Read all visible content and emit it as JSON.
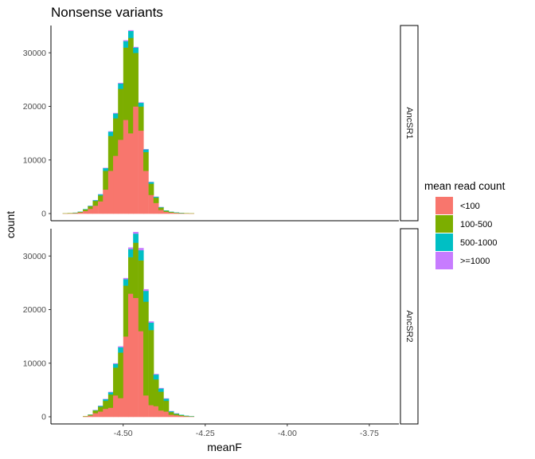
{
  "chart_data": {
    "type": "bar",
    "subtype": "stacked-histogram-faceted",
    "title": "Nonsense variants",
    "xlabel": "meanF",
    "ylabel": "count",
    "xlim": [
      -4.72,
      -3.66
    ],
    "ylim": [
      0,
      34500
    ],
    "x_ticks": [
      -4.5,
      -4.25,
      -4.0,
      -3.75
    ],
    "x_tick_labels": [
      "-4.50",
      "-4.25",
      "-4.00",
      "-3.75"
    ],
    "y_ticks": [
      0,
      10000,
      20000,
      30000
    ],
    "y_tick_labels": [
      "0",
      "10000",
      "20000",
      "30000"
    ],
    "bin_width": 0.0154,
    "grid": false,
    "legend": {
      "title": "mean read count",
      "position": "right",
      "entries": [
        {
          "label": "<100",
          "color": "#F8766D"
        },
        {
          "label": "100-500",
          "color": "#7CAE00"
        },
        {
          "label": "500-1000",
          "color": "#00BFC4"
        },
        {
          "label": ">=1000",
          "color": "#C77CFF"
        }
      ]
    },
    "series_names": [
      "<100",
      "100-500",
      "500-1000",
      ">=1000"
    ],
    "facets": [
      {
        "label": "AncSR1",
        "bins": [
          {
            "x": -4.677,
            "v": [
              30,
              20,
              0,
              0
            ]
          },
          {
            "x": -4.662,
            "v": [
              60,
              40,
              0,
              0
            ]
          },
          {
            "x": -4.646,
            "v": [
              100,
              60,
              5,
              0
            ]
          },
          {
            "x": -4.631,
            "v": [
              220,
              120,
              10,
              0
            ]
          },
          {
            "x": -4.615,
            "v": [
              500,
              300,
              40,
              0
            ]
          },
          {
            "x": -4.6,
            "v": [
              900,
              500,
              60,
              5
            ]
          },
          {
            "x": -4.585,
            "v": [
              1500,
              900,
              120,
              10
            ]
          },
          {
            "x": -4.569,
            "v": [
              2300,
              1100,
              200,
              20
            ]
          },
          {
            "x": -4.554,
            "v": [
              4500,
              3500,
              500,
              40
            ]
          },
          {
            "x": -4.538,
            "v": [
              8000,
              6500,
              800,
              60
            ]
          },
          {
            "x": -4.523,
            "v": [
              10800,
              7000,
              900,
              80
            ]
          },
          {
            "x": -4.508,
            "v": [
              13800,
              9500,
              1000,
              100
            ]
          },
          {
            "x": -4.492,
            "v": [
              17500,
              13500,
              1200,
              150
            ]
          },
          {
            "x": -4.477,
            "v": [
              15000,
              17800,
              1300,
              120
            ]
          },
          {
            "x": -4.462,
            "v": [
              20000,
              10000,
              1000,
              100
            ]
          },
          {
            "x": -4.446,
            "v": [
              15500,
              4500,
              700,
              60
            ]
          },
          {
            "x": -4.431,
            "v": [
              8000,
              3500,
              500,
              40
            ]
          },
          {
            "x": -4.415,
            "v": [
              3500,
              2100,
              300,
              20
            ]
          },
          {
            "x": -4.4,
            "v": [
              2000,
              1000,
              150,
              10
            ]
          },
          {
            "x": -4.385,
            "v": [
              700,
              450,
              70,
              5
            ]
          },
          {
            "x": -4.369,
            "v": [
              350,
              200,
              40,
              0
            ]
          },
          {
            "x": -4.354,
            "v": [
              200,
              120,
              20,
              0
            ]
          },
          {
            "x": -4.338,
            "v": [
              130,
              80,
              10,
              0
            ]
          },
          {
            "x": -4.323,
            "v": [
              80,
              50,
              5,
              0
            ]
          },
          {
            "x": -4.308,
            "v": [
              50,
              30,
              0,
              0
            ]
          },
          {
            "x": -4.292,
            "v": [
              30,
              20,
              0,
              0
            ]
          }
        ]
      },
      {
        "label": "AncSR2",
        "bins": [
          {
            "x": -4.615,
            "v": [
              80,
              40,
              0,
              0
            ]
          },
          {
            "x": -4.6,
            "v": [
              250,
              150,
              10,
              0
            ]
          },
          {
            "x": -4.585,
            "v": [
              700,
              500,
              60,
              10
            ]
          },
          {
            "x": -4.569,
            "v": [
              1000,
              900,
              150,
              20
            ]
          },
          {
            "x": -4.554,
            "v": [
              1500,
              1500,
              300,
              40
            ]
          },
          {
            "x": -4.538,
            "v": [
              1700,
              2500,
              400,
              60
            ]
          },
          {
            "x": -4.523,
            "v": [
              4000,
              5200,
              700,
              80
            ]
          },
          {
            "x": -4.508,
            "v": [
              3500,
              8500,
              1000,
              150
            ]
          },
          {
            "x": -4.492,
            "v": [
              15000,
              9500,
              1200,
              200
            ]
          },
          {
            "x": -4.477,
            "v": [
              23000,
              6800,
              1500,
              300
            ]
          },
          {
            "x": -4.462,
            "v": [
              22200,
              10300,
              1700,
              300
            ]
          },
          {
            "x": -4.446,
            "v": [
              16000,
              13200,
              1900,
              400
            ]
          },
          {
            "x": -4.431,
            "v": [
              4000,
              17500,
              2000,
              300
            ]
          },
          {
            "x": -4.415,
            "v": [
              2200,
              14000,
              1400,
              200
            ]
          },
          {
            "x": -4.4,
            "v": [
              2000,
              5000,
              900,
              100
            ]
          },
          {
            "x": -4.385,
            "v": [
              1200,
              3500,
              600,
              80
            ]
          },
          {
            "x": -4.369,
            "v": [
              1000,
              2000,
              400,
              50
            ]
          },
          {
            "x": -4.354,
            "v": [
              400,
              500,
              150,
              20
            ]
          },
          {
            "x": -4.338,
            "v": [
              300,
              250,
              80,
              10
            ]
          },
          {
            "x": -4.323,
            "v": [
              180,
              150,
              40,
              0
            ]
          },
          {
            "x": -4.308,
            "v": [
              100,
              80,
              20,
              0
            ]
          },
          {
            "x": -4.292,
            "v": [
              60,
              40,
              10,
              0
            ]
          }
        ]
      }
    ]
  }
}
